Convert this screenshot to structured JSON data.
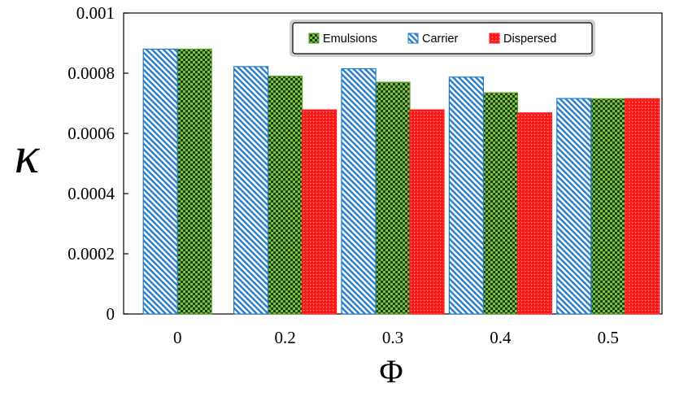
{
  "chart_data": {
    "type": "bar",
    "title": "",
    "xlabel": "Φ",
    "ylabel": "κ",
    "categories": [
      "0",
      "0.2",
      "0.3",
      "0.4",
      "0.5"
    ],
    "series": [
      {
        "name": "Emulsions",
        "values": [
          0.00088,
          0.00079,
          0.00077,
          0.000735,
          0.000715
        ],
        "color": "#5aa02c",
        "pattern": "checker"
      },
      {
        "name": "Carrier",
        "values": [
          0.00088,
          0.000822,
          0.000815,
          0.000787,
          0.000716
        ],
        "color": "#1f78c8",
        "pattern": "diagonal"
      },
      {
        "name": "Dispersed",
        "values": [
          null,
          0.000678,
          0.000678,
          0.000668,
          0.000715
        ],
        "color": "#ff1a1a",
        "pattern": "dots"
      }
    ],
    "ylim": [
      0,
      0.001
    ],
    "yticks": [
      "0",
      "0.0002",
      "0.0004",
      "0.0006",
      "0.0008",
      "0.001"
    ],
    "legend": {
      "position": "top-right",
      "items": [
        "Emulsions",
        "Carrier",
        "Dispersed"
      ]
    },
    "grid": false
  }
}
